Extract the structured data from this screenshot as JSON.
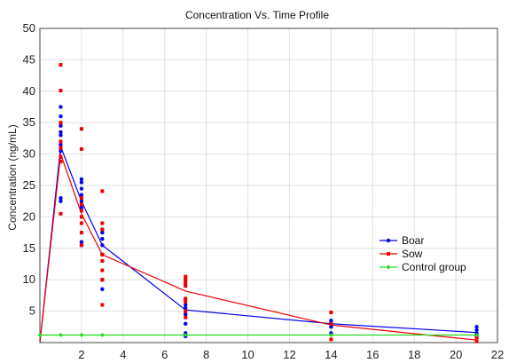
{
  "chart_data": {
    "type": "scatter",
    "title": "Concentration Vs. Time Profile",
    "xlabel": "",
    "ylabel": "Concentration (ng/mL)",
    "xlim": [
      0,
      22
    ],
    "ylim": [
      0,
      50
    ],
    "xticks": [
      2,
      4,
      6,
      8,
      10,
      12,
      14,
      16,
      18,
      20,
      22
    ],
    "yticks": [
      5,
      10,
      15,
      20,
      25,
      30,
      35,
      40,
      45,
      50
    ],
    "grid": true,
    "legend_position": "right",
    "series": [
      {
        "name": "Boar",
        "color": "#0000ee",
        "marker": "circle",
        "line": {
          "x": [
            0,
            1,
            2,
            3,
            7,
            14,
            21
          ],
          "y": [
            0,
            31.2,
            22.5,
            15.5,
            5.2,
            3.0,
            1.6
          ]
        },
        "points": {
          "x": [
            1,
            1,
            1,
            1,
            1,
            1,
            1,
            1,
            1,
            2,
            2,
            2,
            2,
            2,
            2,
            2,
            2,
            3,
            3,
            3,
            3,
            3,
            3,
            3,
            7,
            7,
            7,
            7,
            7,
            7,
            14,
            14,
            14,
            14,
            21,
            21,
            21,
            21
          ],
          "y": [
            37.5,
            36.0,
            34.5,
            33.5,
            33.0,
            31.5,
            30.5,
            23.0,
            22.5,
            26.0,
            25.5,
            24.5,
            23.5,
            22.5,
            21.5,
            16.0,
            15.5,
            18.0,
            17.5,
            16.5,
            15.5,
            10.0,
            8.5,
            14.0,
            6.0,
            5.5,
            4.5,
            3.0,
            1.5,
            1.0,
            3.5,
            3.0,
            2.5,
            1.5,
            2.5,
            2.0,
            1.5,
            1.0
          ]
        }
      },
      {
        "name": "Sow",
        "color": "#ee0000",
        "marker": "square",
        "line": {
          "x": [
            0,
            1,
            2,
            3,
            7,
            14,
            21
          ],
          "y": [
            0,
            30.0,
            20.5,
            14.0,
            8.2,
            2.8,
            0.4
          ]
        },
        "points": {
          "x": [
            1,
            1,
            1,
            1,
            1,
            1,
            1,
            1,
            2,
            2,
            2,
            2,
            2,
            2,
            2,
            2,
            2,
            3,
            3,
            3,
            3,
            3,
            3,
            3,
            3,
            7,
            7,
            7,
            7,
            7,
            7,
            7,
            7,
            14,
            14,
            14,
            21,
            21
          ],
          "y": [
            44.2,
            40.1,
            35.0,
            32.0,
            31.0,
            29.5,
            28.8,
            20.5,
            34.0,
            30.8,
            23.0,
            22.0,
            21.0,
            20.0,
            19.0,
            17.5,
            15.5,
            24.1,
            19.0,
            18.0,
            14.0,
            13.0,
            11.5,
            10.0,
            6.0,
            10.5,
            10.0,
            9.5,
            9.0,
            7.0,
            6.5,
            5.0,
            4.0,
            4.8,
            3.0,
            0.5,
            0.8,
            0.2
          ]
        }
      },
      {
        "name": "Control group",
        "color": "#22dd22",
        "marker": "diamond",
        "line": {
          "x": [
            0,
            1,
            2,
            3,
            7,
            14,
            21
          ],
          "y": [
            1.2,
            1.2,
            1.2,
            1.2,
            1.2,
            1.2,
            1.2
          ]
        },
        "points": {
          "x": [
            0,
            1,
            2,
            3,
            7,
            14,
            21
          ],
          "y": [
            1.2,
            1.2,
            1.2,
            1.2,
            1.2,
            1.2,
            1.2
          ]
        }
      }
    ]
  }
}
